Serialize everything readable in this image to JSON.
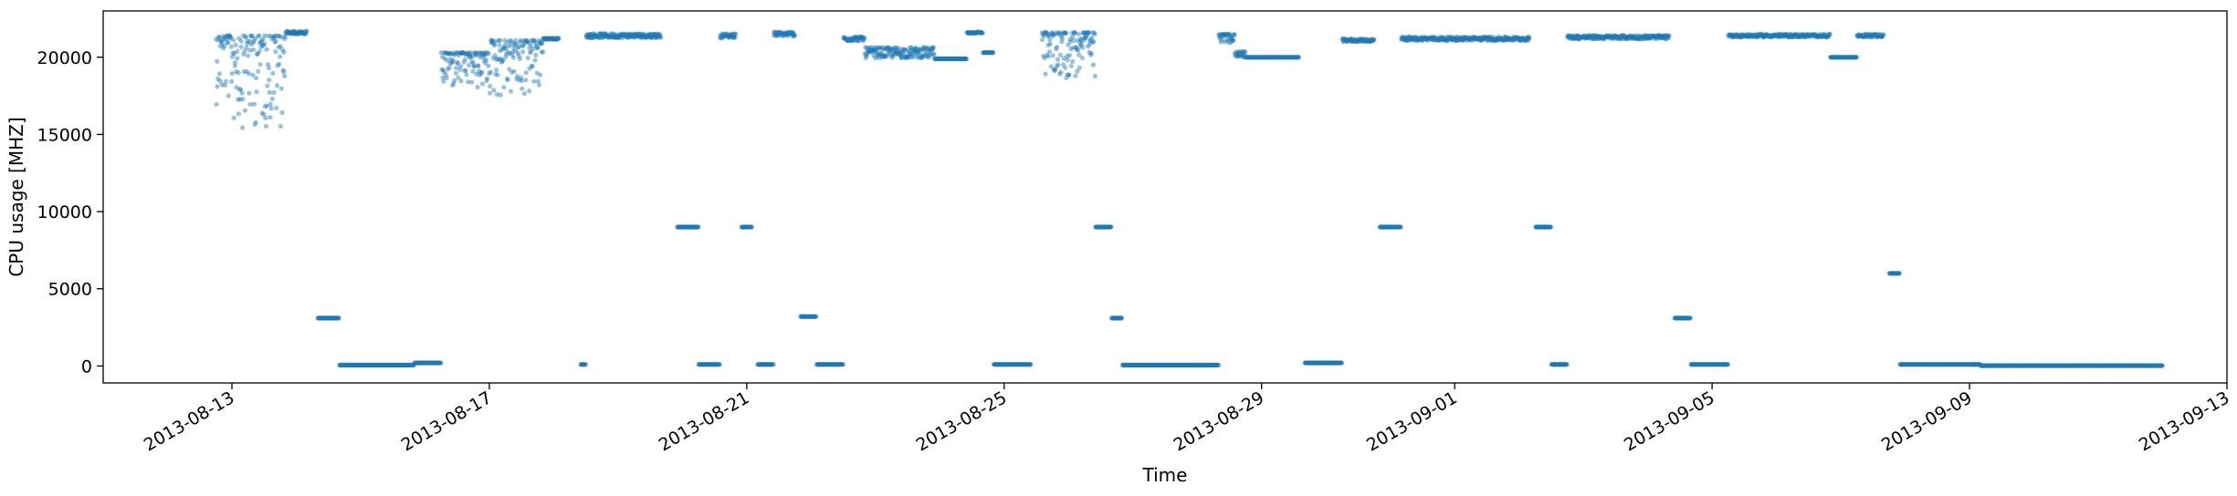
{
  "chart_data": {
    "type": "scatter",
    "xlabel": "Time",
    "ylabel": "CPU usage [MHZ]",
    "xlim": [
      "2013-08-11T00:00",
      "2013-09-13T00:00"
    ],
    "ylim": [
      -1100,
      23000
    ],
    "x_ticks": [
      "2013-08-13",
      "2013-08-17",
      "2013-08-21",
      "2013-08-25",
      "2013-08-29",
      "2013-09-01",
      "2013-09-05",
      "2013-09-09",
      "2013-09-13"
    ],
    "y_ticks": [
      0,
      5000,
      10000,
      15000,
      20000
    ],
    "grid": false,
    "color": "#1f77b4",
    "segments": [
      {
        "start": "2013-08-12T18:00",
        "end": "2013-08-13T00:00",
        "level": 21400,
        "spread": 4500,
        "mode": "low"
      },
      {
        "start": "2013-08-13T00:00",
        "end": "2013-08-13T20:00",
        "level": 21400,
        "spread": 6000,
        "mode": "low"
      },
      {
        "start": "2013-08-13T20:00",
        "end": "2013-08-14T04:00",
        "level": 21600,
        "spread": 200,
        "mode": "both"
      },
      {
        "start": "2013-08-14T08:00",
        "end": "2013-08-14T16:00",
        "level": 3100,
        "spread": 0,
        "mode": "both"
      },
      {
        "start": "2013-08-14T16:00",
        "end": "2013-08-15T20:00",
        "level": 60,
        "spread": 0,
        "mode": "both"
      },
      {
        "start": "2013-08-15T20:00",
        "end": "2013-08-16T06:00",
        "level": 200,
        "spread": 0,
        "mode": "both"
      },
      {
        "start": "2013-08-16T06:00",
        "end": "2013-08-17T00:00",
        "level": 20300,
        "spread": 2500,
        "mode": "low"
      },
      {
        "start": "2013-08-17T00:00",
        "end": "2013-08-17T20:00",
        "level": 21100,
        "spread": 3800,
        "mode": "low"
      },
      {
        "start": "2013-08-17T20:00",
        "end": "2013-08-18T02:00",
        "level": 21200,
        "spread": 100,
        "mode": "both"
      },
      {
        "start": "2013-08-18T10:00",
        "end": "2013-08-18T12:00",
        "level": 100,
        "spread": 0,
        "mode": "both"
      },
      {
        "start": "2013-08-18T12:00",
        "end": "2013-08-19T16:00",
        "level": 21400,
        "spread": 300,
        "mode": "both"
      },
      {
        "start": "2013-08-19T22:00",
        "end": "2013-08-20T06:00",
        "level": 9000,
        "spread": 0,
        "mode": "both"
      },
      {
        "start": "2013-08-20T06:00",
        "end": "2013-08-20T14:00",
        "level": 100,
        "spread": 0,
        "mode": "both"
      },
      {
        "start": "2013-08-20T14:00",
        "end": "2013-08-20T20:00",
        "level": 21400,
        "spread": 300,
        "mode": "both"
      },
      {
        "start": "2013-08-20T22:00",
        "end": "2013-08-21T02:00",
        "level": 9000,
        "spread": 0,
        "mode": "both"
      },
      {
        "start": "2013-08-21T04:00",
        "end": "2013-08-21T10:00",
        "level": 100,
        "spread": 0,
        "mode": "both"
      },
      {
        "start": "2013-08-21T10:00",
        "end": "2013-08-21T18:00",
        "level": 21500,
        "spread": 300,
        "mode": "both"
      },
      {
        "start": "2013-08-21T20:00",
        "end": "2013-08-22T02:00",
        "level": 3200,
        "spread": 0,
        "mode": "both"
      },
      {
        "start": "2013-08-22T02:00",
        "end": "2013-08-22T12:00",
        "level": 100,
        "spread": 0,
        "mode": "both"
      },
      {
        "start": "2013-08-22T12:00",
        "end": "2013-08-22T20:00",
        "level": 21200,
        "spread": 300,
        "mode": "both"
      },
      {
        "start": "2013-08-22T20:00",
        "end": "2013-08-23T22:00",
        "level": 20300,
        "spread": 700,
        "mode": "both"
      },
      {
        "start": "2013-08-23T22:00",
        "end": "2013-08-24T10:00",
        "level": 19900,
        "spread": 0,
        "mode": "both"
      },
      {
        "start": "2013-08-24T10:00",
        "end": "2013-08-24T16:00",
        "level": 21600,
        "spread": 100,
        "mode": "both"
      },
      {
        "start": "2013-08-24T16:00",
        "end": "2013-08-24T20:00",
        "level": 20300,
        "spread": 0,
        "mode": "both"
      },
      {
        "start": "2013-08-24T20:00",
        "end": "2013-08-25T10:00",
        "level": 100,
        "spread": 0,
        "mode": "both"
      },
      {
        "start": "2013-08-25T14:00",
        "end": "2013-08-26T10:00",
        "level": 21600,
        "spread": 3000,
        "mode": "low"
      },
      {
        "start": "2013-08-26T10:00",
        "end": "2013-08-26T16:00",
        "level": 9000,
        "spread": 0,
        "mode": "both"
      },
      {
        "start": "2013-08-26T16:00",
        "end": "2013-08-26T20:00",
        "level": 3100,
        "spread": 0,
        "mode": "both"
      },
      {
        "start": "2013-08-26T20:00",
        "end": "2013-08-28T08:00",
        "level": 60,
        "spread": 0,
        "mode": "both"
      },
      {
        "start": "2013-08-28T08:00",
        "end": "2013-08-28T14:00",
        "level": 21500,
        "spread": 600,
        "mode": "low"
      },
      {
        "start": "2013-08-28T14:00",
        "end": "2013-08-28T18:00",
        "level": 20200,
        "spread": 400,
        "mode": "both"
      },
      {
        "start": "2013-08-28T18:00",
        "end": "2013-08-29T14:00",
        "level": 20000,
        "spread": 0,
        "mode": "both"
      },
      {
        "start": "2013-08-29T16:00",
        "end": "2013-08-30T06:00",
        "level": 200,
        "spread": 0,
        "mode": "both"
      },
      {
        "start": "2013-08-30T06:00",
        "end": "2013-08-30T18:00",
        "level": 21100,
        "spread": 200,
        "mode": "both"
      },
      {
        "start": "2013-08-30T20:00",
        "end": "2013-08-31T04:00",
        "level": 9000,
        "spread": 0,
        "mode": "both"
      },
      {
        "start": "2013-08-31T04:00",
        "end": "2013-09-02T04:00",
        "level": 21200,
        "spread": 250,
        "mode": "both"
      },
      {
        "start": "2013-09-02T06:00",
        "end": "2013-09-02T12:00",
        "level": 9000,
        "spread": 0,
        "mode": "both"
      },
      {
        "start": "2013-09-02T12:00",
        "end": "2013-09-02T18:00",
        "level": 100,
        "spread": 0,
        "mode": "both"
      },
      {
        "start": "2013-09-02T18:00",
        "end": "2013-09-04T08:00",
        "level": 21300,
        "spread": 250,
        "mode": "both"
      },
      {
        "start": "2013-09-04T10:00",
        "end": "2013-09-04T16:00",
        "level": 3100,
        "spread": 0,
        "mode": "both"
      },
      {
        "start": "2013-09-04T16:00",
        "end": "2013-09-05T06:00",
        "level": 100,
        "spread": 0,
        "mode": "both"
      },
      {
        "start": "2013-09-05T06:00",
        "end": "2013-09-06T20:00",
        "level": 21400,
        "spread": 200,
        "mode": "both"
      },
      {
        "start": "2013-09-06T20:00",
        "end": "2013-09-07T06:00",
        "level": 20000,
        "spread": 0,
        "mode": "both"
      },
      {
        "start": "2013-09-07T06:00",
        "end": "2013-09-07T16:00",
        "level": 21400,
        "spread": 200,
        "mode": "both"
      },
      {
        "start": "2013-09-07T18:00",
        "end": "2013-09-07T22:00",
        "level": 6000,
        "spread": 0,
        "mode": "both"
      },
      {
        "start": "2013-09-07T22:00",
        "end": "2013-09-09T04:00",
        "level": 100,
        "spread": 0,
        "mode": "both"
      },
      {
        "start": "2013-09-09T04:00",
        "end": "2013-09-12T00:00",
        "level": 20,
        "spread": 0,
        "mode": "both"
      }
    ]
  }
}
